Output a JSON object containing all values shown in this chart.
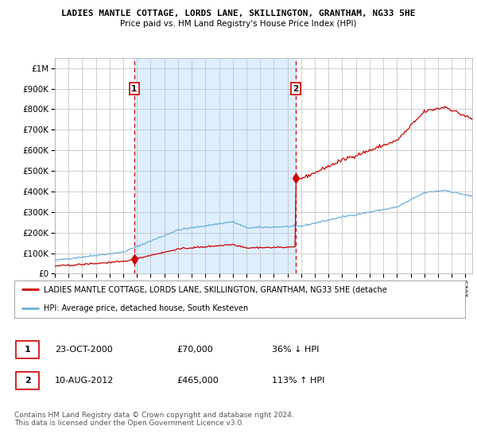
{
  "title": "LADIES MANTLE COTTAGE, LORDS LANE, SKILLINGTON, GRANTHAM, NG33 5HE",
  "subtitle": "Price paid vs. HM Land Registry's House Price Index (HPI)",
  "sale1_date": "23-OCT-2000",
  "sale1_price": 70000,
  "sale1_label": "1",
  "sale1_x": 2000.8,
  "sale2_date": "10-AUG-2012",
  "sale2_price": 465000,
  "sale2_label": "2",
  "sale2_x": 2012.6,
  "legend_line1": "LADIES MANTLE COTTAGE, LORDS LANE, SKILLINGTON, GRANTHAM, NG33 5HE (detache",
  "legend_line2": "HPI: Average price, detached house, South Kesteven",
  "footnote": "Contains HM Land Registry data © Crown copyright and database right 2024.\nThis data is licensed under the Open Government Licence v3.0.",
  "hpi_color": "#6baed6",
  "price_color": "#cc0000",
  "shading_color": "#ddeeff",
  "background_color": "#ffffff",
  "grid_color": "#bbbbbb",
  "ylim_max": 1050000,
  "xmin": 1995,
  "xmax": 2025.5
}
